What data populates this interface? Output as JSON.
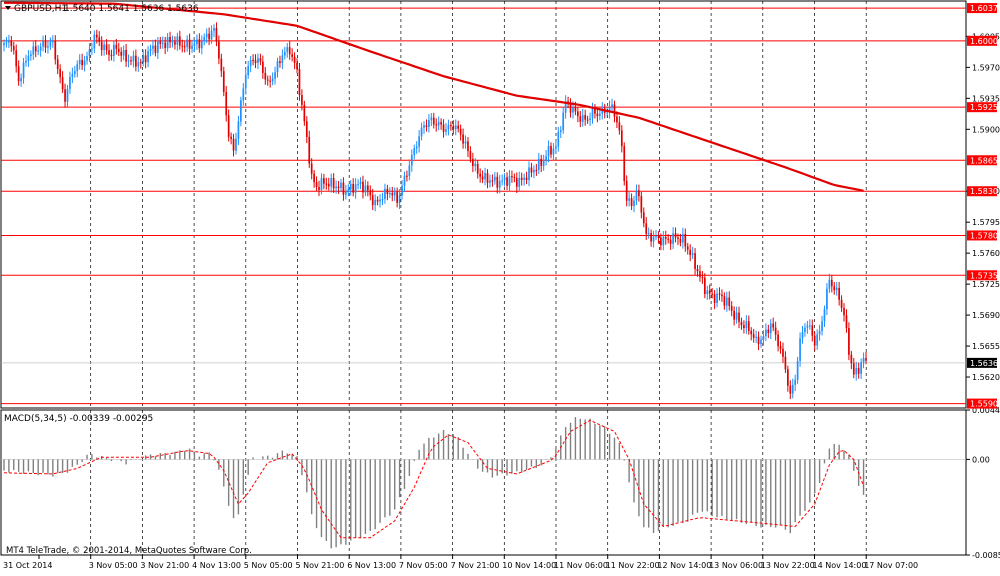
{
  "window": {
    "symbol_label": "GBPUSD,H1",
    "ohlc_label": "1.5640 1.5641 1.5636 1.5636",
    "copyright": "MT4 TeleTrade, © 2001-2014, MetaQuotes Software Corp."
  },
  "colors": {
    "background": "#ffffff",
    "grid": "#000000",
    "bull_candle": "#1e90ff",
    "bear_candle": "#e00000",
    "moving_average": "#e00000",
    "level_line": "#ff0000",
    "level_tag_bg": "#ff0000",
    "price_tag_bg": "#000000",
    "macd_hist": "#808080",
    "macd_signal": "#ff0000",
    "axis_text": "#000000"
  },
  "chart_data": [
    {
      "type": "candlestick",
      "series_name": "GBPUSD,H1",
      "ylim": [
        1.5585,
        1.6045
      ],
      "y_ticks": [
        "1.6005",
        "1.5970",
        "1.5935",
        "1.5900",
        "1.5830",
        "1.5795",
        "1.5760",
        "1.5725",
        "1.5690",
        "1.5655",
        "1.5620"
      ],
      "x_labels": [
        "31 Oct 2014",
        "3 Nov 05:00",
        "3 Nov 21:00",
        "4 Nov 13:00",
        "5 Nov 05:00",
        "5 Nov 21:00",
        "6 Nov 13:00",
        "7 Nov 05:00",
        "7 Nov 21:00",
        "10 Nov 14:00",
        "11 Nov 06:00",
        "11 Nov 22:00",
        "12 Nov 14:00",
        "13 Nov 06:00",
        "13 Nov 22:00",
        "14 Nov 14:00",
        "17 Nov 07:00"
      ],
      "grid": true,
      "levels": [
        {
          "value": 1.6037,
          "label": "1.6037"
        },
        {
          "value": 1.6,
          "label": "1.6000"
        },
        {
          "value": 1.5925,
          "label": "1.5925"
        },
        {
          "value": 1.5865,
          "label": "1.5865"
        },
        {
          "value": 1.583,
          "label": "1.5830"
        },
        {
          "value": 1.578,
          "label": "1.5780"
        },
        {
          "value": 1.5735,
          "label": "1.5735"
        },
        {
          "value": 1.559,
          "label": "1.5590"
        }
      ],
      "current_price": {
        "value": 1.5636,
        "label": "1.5636"
      },
      "close_path": [
        [
          0,
          1.5995
        ],
        [
          3,
          1.6
        ],
        [
          6,
          1.5955
        ],
        [
          10,
          1.5985
        ],
        [
          13,
          1.599
        ],
        [
          16,
          1.5995
        ],
        [
          20,
          1.5997
        ],
        [
          23,
          1.5955
        ],
        [
          25,
          1.5935
        ],
        [
          28,
          1.5965
        ],
        [
          31,
          1.5975
        ],
        [
          34,
          1.598
        ],
        [
          37,
          1.6005
        ],
        [
          40,
          1.5995
        ],
        [
          43,
          1.5985
        ],
        [
          46,
          1.5992
        ],
        [
          50,
          1.598
        ],
        [
          53,
          1.5977
        ],
        [
          56,
          1.5975
        ],
        [
          60,
          1.599
        ],
        [
          63,
          1.5995
        ],
        [
          66,
          1.5998
        ],
        [
          70,
          1.6
        ],
        [
          73,
          1.5995
        ],
        [
          76,
          1.5995
        ],
        [
          80,
          1.5997
        ],
        [
          83,
          1.6005
        ],
        [
          86,
          1.6012
        ],
        [
          88,
          1.5985
        ],
        [
          90,
          1.594
        ],
        [
          92,
          1.5895
        ],
        [
          94,
          1.5875
        ],
        [
          96,
          1.591
        ],
        [
          99,
          1.5965
        ],
        [
          102,
          1.598
        ],
        [
          105,
          1.5975
        ],
        [
          108,
          1.595
        ],
        [
          111,
          1.5965
        ],
        [
          114,
          1.5985
        ],
        [
          117,
          1.599
        ],
        [
          120,
          1.5965
        ],
        [
          122,
          1.5925
        ],
        [
          124,
          1.589
        ],
        [
          126,
          1.5845
        ],
        [
          128,
          1.5835
        ],
        [
          131,
          1.584
        ],
        [
          134,
          1.5838
        ],
        [
          137,
          1.5835
        ],
        [
          140,
          1.583
        ],
        [
          143,
          1.5835
        ],
        [
          146,
          1.5838
        ],
        [
          149,
          1.583
        ],
        [
          152,
          1.5815
        ],
        [
          155,
          1.5825
        ],
        [
          158,
          1.583
        ],
        [
          161,
          1.582
        ],
        [
          163,
          1.5835
        ],
        [
          166,
          1.586
        ],
        [
          169,
          1.5885
        ],
        [
          172,
          1.5905
        ],
        [
          175,
          1.591
        ],
        [
          178,
          1.5905
        ],
        [
          181,
          1.59
        ],
        [
          184,
          1.5905
        ],
        [
          187,
          1.5895
        ],
        [
          190,
          1.5875
        ],
        [
          193,
          1.5855
        ],
        [
          196,
          1.5845
        ],
        [
          199,
          1.5843
        ],
        [
          202,
          1.584
        ],
        [
          205,
          1.5842
        ],
        [
          208,
          1.5845
        ],
        [
          211,
          1.584
        ],
        [
          214,
          1.5848
        ],
        [
          217,
          1.5855
        ],
        [
          220,
          1.5862
        ],
        [
          223,
          1.5875
        ],
        [
          226,
          1.588
        ],
        [
          228,
          1.5905
        ],
        [
          230,
          1.593
        ],
        [
          232,
          1.5925
        ],
        [
          235,
          1.5915
        ],
        [
          238,
          1.591
        ],
        [
          241,
          1.5918
        ],
        [
          244,
          1.5918
        ],
        [
          247,
          1.5922
        ],
        [
          249,
          1.5925
        ],
        [
          251,
          1.591
        ],
        [
          253,
          1.588
        ],
        [
          254,
          1.5845
        ],
        [
          255,
          1.582
        ],
        [
          257,
          1.5815
        ],
        [
          259,
          1.583
        ],
        [
          261,
          1.581
        ],
        [
          263,
          1.578
        ],
        [
          266,
          1.5778
        ],
        [
          269,
          1.5775
        ],
        [
          272,
          1.5775
        ],
        [
          275,
          1.5778
        ],
        [
          278,
          1.5775
        ],
        [
          281,
          1.576
        ],
        [
          284,
          1.574
        ],
        [
          287,
          1.572
        ],
        [
          290,
          1.571
        ],
        [
          293,
          1.5712
        ],
        [
          296,
          1.5705
        ],
        [
          299,
          1.569
        ],
        [
          302,
          1.568
        ],
        [
          305,
          1.5675
        ],
        [
          308,
          1.566
        ],
        [
          311,
          1.5665
        ],
        [
          314,
          1.568
        ],
        [
          317,
          1.566
        ],
        [
          320,
          1.563
        ],
        [
          322,
          1.5598
        ],
        [
          324,
          1.562
        ],
        [
          326,
          1.566
        ],
        [
          328,
          1.568
        ],
        [
          330,
          1.5675
        ],
        [
          332,
          1.566
        ],
        [
          334,
          1.567
        ],
        [
          336,
          1.57
        ],
        [
          338,
          1.573
        ],
        [
          340,
          1.572
        ],
        [
          342,
          1.571
        ],
        [
          344,
          1.569
        ],
        [
          346,
          1.565
        ],
        [
          348,
          1.5622
        ],
        [
          350,
          1.563
        ],
        [
          352,
          1.564
        ],
        [
          353,
          1.5636
        ]
      ],
      "moving_average": [
        [
          0,
          1.6043
        ],
        [
          45,
          1.6042
        ],
        [
          90,
          1.603
        ],
        [
          120,
          1.6017
        ],
        [
          150,
          1.5988
        ],
        [
          180,
          1.596
        ],
        [
          210,
          1.5938
        ],
        [
          235,
          1.5928
        ],
        [
          260,
          1.5913
        ],
        [
          290,
          1.5885
        ],
        [
          320,
          1.5857
        ],
        [
          340,
          1.5837
        ],
        [
          353,
          1.583
        ]
      ]
    },
    {
      "type": "bar",
      "series_name": "MACD(5,34,5)",
      "label": "MACD(5,34,5) -0.00339 -0.00295",
      "ylim": [
        -0.00855,
        0.00442
      ],
      "y_ticks": [
        "0.00442",
        "0.00",
        "-0.00855"
      ],
      "histogram_path": [
        [
          0,
          -0.001
        ],
        [
          10,
          -0.0012
        ],
        [
          20,
          -0.0014
        ],
        [
          25,
          -0.0012
        ],
        [
          30,
          -0.0005
        ],
        [
          35,
          0.0005
        ],
        [
          40,
          0.0002
        ],
        [
          50,
          -0.0003
        ],
        [
          60,
          0.0004
        ],
        [
          70,
          0.0006
        ],
        [
          75,
          0.001
        ],
        [
          80,
          0.0004
        ],
        [
          85,
          0.0006
        ],
        [
          88,
          -0.001
        ],
        [
          92,
          -0.004
        ],
        [
          95,
          -0.006
        ],
        [
          98,
          -0.003
        ],
        [
          102,
          0.0001
        ],
        [
          110,
          0.0003
        ],
        [
          115,
          0.0008
        ],
        [
          120,
          0.0002
        ],
        [
          123,
          -0.002
        ],
        [
          126,
          -0.005
        ],
        [
          130,
          -0.007
        ],
        [
          135,
          -0.008
        ],
        [
          140,
          -0.0075
        ],
        [
          150,
          -0.0065
        ],
        [
          160,
          -0.0045
        ],
        [
          166,
          -0.0015
        ],
        [
          170,
          0.001
        ],
        [
          175,
          0.002
        ],
        [
          180,
          0.0025
        ],
        [
          185,
          0.0022
        ],
        [
          190,
          0.0005
        ],
        [
          195,
          -0.001
        ],
        [
          200,
          -0.0015
        ],
        [
          210,
          -0.0012
        ],
        [
          220,
          -0.0005
        ],
        [
          225,
          0.0005
        ],
        [
          230,
          0.003
        ],
        [
          235,
          0.0038
        ],
        [
          240,
          0.0035
        ],
        [
          245,
          0.003
        ],
        [
          250,
          0.002
        ],
        [
          253,
          0.001
        ],
        [
          255,
          -0.001
        ],
        [
          258,
          -0.004
        ],
        [
          262,
          -0.006
        ],
        [
          266,
          -0.0065
        ],
        [
          272,
          -0.006
        ],
        [
          280,
          -0.0055
        ],
        [
          285,
          -0.0045
        ],
        [
          290,
          -0.005
        ],
        [
          300,
          -0.0055
        ],
        [
          310,
          -0.006
        ],
        [
          318,
          -0.006
        ],
        [
          322,
          -0.0065
        ],
        [
          326,
          -0.005
        ],
        [
          330,
          -0.004
        ],
        [
          334,
          -0.002
        ],
        [
          338,
          0.001
        ],
        [
          340,
          0.0015
        ],
        [
          343,
          0.001
        ],
        [
          346,
          0.0005
        ],
        [
          349,
          -0.002
        ],
        [
          353,
          -0.0034
        ]
      ],
      "signal_path": [
        [
          0,
          -0.0012
        ],
        [
          20,
          -0.0013
        ],
        [
          30,
          -0.0008
        ],
        [
          40,
          0.0002
        ],
        [
          60,
          0.0002
        ],
        [
          75,
          0.0008
        ],
        [
          85,
          0.0005
        ],
        [
          90,
          -0.001
        ],
        [
          96,
          -0.004
        ],
        [
          100,
          -0.003
        ],
        [
          108,
          -0.0003
        ],
        [
          118,
          0.0005
        ],
        [
          123,
          -0.0008
        ],
        [
          130,
          -0.0045
        ],
        [
          138,
          -0.007
        ],
        [
          150,
          -0.007
        ],
        [
          160,
          -0.0055
        ],
        [
          168,
          -0.0025
        ],
        [
          175,
          0.001
        ],
        [
          182,
          0.0022
        ],
        [
          190,
          0.0015
        ],
        [
          198,
          -0.0008
        ],
        [
          210,
          -0.0013
        ],
        [
          225,
          0.0
        ],
        [
          232,
          0.0025
        ],
        [
          240,
          0.0035
        ],
        [
          250,
          0.0025
        ],
        [
          256,
          0.0
        ],
        [
          262,
          -0.004
        ],
        [
          270,
          -0.006
        ],
        [
          285,
          -0.0052
        ],
        [
          300,
          -0.0055
        ],
        [
          315,
          -0.0058
        ],
        [
          324,
          -0.006
        ],
        [
          332,
          -0.004
        ],
        [
          338,
          -0.0005
        ],
        [
          343,
          0.001
        ],
        [
          348,
          0.0
        ],
        [
          353,
          -0.003
        ]
      ]
    }
  ]
}
